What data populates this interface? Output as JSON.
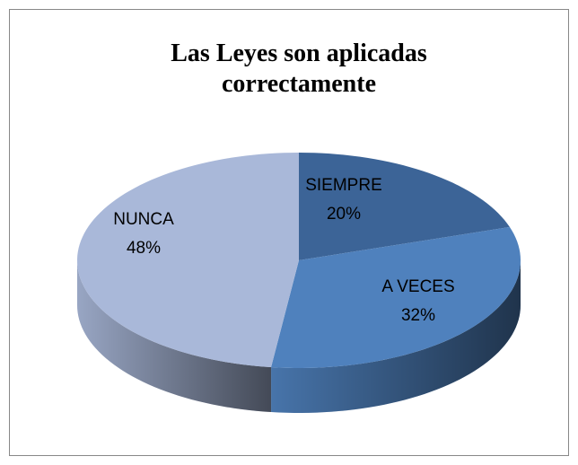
{
  "chart_data": {
    "type": "pie3d",
    "title": "Las Leyes son aplicadas correctamente",
    "categories": [
      "SIEMPRE",
      "A VECES",
      "NUNCA"
    ],
    "values": [
      20,
      32,
      48
    ],
    "value_labels": [
      "20%",
      "32%",
      "48%"
    ],
    "colors": [
      "#3c6497",
      "#4f81bd",
      "#a9b8d9"
    ]
  }
}
